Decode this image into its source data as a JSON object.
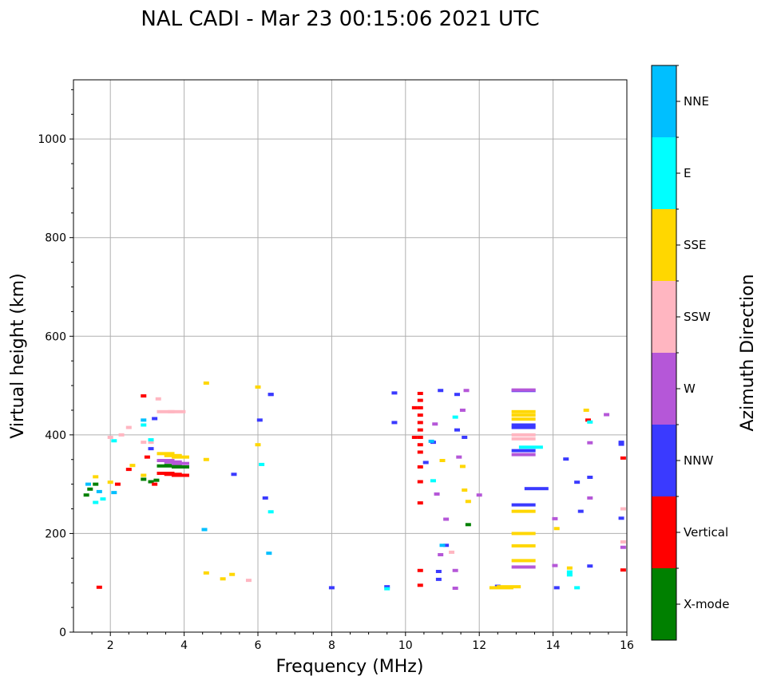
{
  "title": "NAL CADI - Mar 23 00:15:06 2021 UTC",
  "chart_data": {
    "type": "scatter",
    "xlabel": "Frequency (MHz)",
    "ylabel": "Virtual height (km)",
    "xlim": [
      1,
      16
    ],
    "ylim": [
      0,
      1120
    ],
    "xticks": [
      2,
      4,
      6,
      8,
      10,
      12,
      14,
      16
    ],
    "yticks": [
      0,
      200,
      400,
      600,
      800,
      1000
    ],
    "grid": true,
    "colorbar": {
      "label": "Azimuth Direction",
      "categories": [
        {
          "name": "X-mode",
          "color": "#008000"
        },
        {
          "name": "Vertical",
          "color": "#ff0000"
        },
        {
          "name": "NNW",
          "color": "#3a3aff"
        },
        {
          "name": "W",
          "color": "#b557d8"
        },
        {
          "name": "SSW",
          "color": "#ffb6c1"
        },
        {
          "name": "SSE",
          "color": "#ffd700"
        },
        {
          "name": "E",
          "color": "#00ffff"
        },
        {
          "name": "NNE",
          "color": "#00bfff"
        }
      ]
    },
    "series": [
      {
        "name": "X-mode",
        "points": [
          [
            1.35,
            278
          ],
          [
            1.45,
            290
          ],
          [
            1.6,
            300
          ],
          [
            2.9,
            310
          ],
          [
            3.1,
            305
          ],
          [
            3.25,
            308
          ],
          [
            3.5,
            337
          ],
          [
            3.7,
            338
          ],
          [
            3.9,
            335
          ],
          [
            11.7,
            218
          ]
        ]
      },
      {
        "name": "Vertical",
        "points": [
          [
            1.7,
            91
          ],
          [
            2.2,
            300
          ],
          [
            2.5,
            330
          ],
          [
            2.9,
            479
          ],
          [
            3.0,
            355
          ],
          [
            3.2,
            300
          ],
          [
            3.5,
            322
          ],
          [
            3.7,
            320
          ],
          [
            3.9,
            318
          ],
          [
            10.4,
            484
          ],
          [
            10.4,
            470
          ],
          [
            10.4,
            455
          ],
          [
            10.4,
            440
          ],
          [
            10.4,
            425
          ],
          [
            10.4,
            410
          ],
          [
            10.4,
            395
          ],
          [
            10.4,
            380
          ],
          [
            10.4,
            365
          ],
          [
            10.4,
            335
          ],
          [
            10.4,
            305
          ],
          [
            10.4,
            262
          ],
          [
            10.4,
            125
          ],
          [
            10.4,
            95
          ],
          [
            10.25,
            455
          ],
          [
            10.25,
            395
          ],
          [
            14.95,
            430
          ],
          [
            15.9,
            353
          ],
          [
            15.9,
            126
          ]
        ]
      },
      {
        "name": "NNW",
        "points": [
          [
            3.2,
            433
          ],
          [
            3.1,
            372
          ],
          [
            6.35,
            482
          ],
          [
            6.35,
            482
          ],
          [
            10.95,
            490
          ],
          [
            6.05,
            430
          ],
          [
            6.2,
            272
          ],
          [
            5.35,
            320
          ],
          [
            8.0,
            90
          ],
          [
            9.5,
            92
          ],
          [
            9.7,
            485
          ],
          [
            9.7,
            425
          ],
          [
            10.55,
            344
          ],
          [
            10.75,
            385
          ],
          [
            10.9,
            123
          ],
          [
            10.9,
            107
          ],
          [
            11.1,
            176
          ],
          [
            11.4,
            482
          ],
          [
            11.4,
            410
          ],
          [
            11.6,
            395
          ],
          [
            12.5,
            93
          ],
          [
            13.2,
            490
          ],
          [
            13.2,
            420
          ],
          [
            13.2,
            415
          ],
          [
            13.2,
            368
          ],
          [
            13.2,
            258
          ],
          [
            13.55,
            291
          ],
          [
            14.1,
            90
          ],
          [
            14.35,
            351
          ],
          [
            14.65,
            304
          ],
          [
            14.75,
            245
          ],
          [
            15.0,
            314
          ],
          [
            15.0,
            134
          ],
          [
            15.85,
            385
          ],
          [
            15.85,
            381
          ],
          [
            15.85,
            231
          ]
        ]
      },
      {
        "name": "W",
        "points": [
          [
            3.5,
            348
          ],
          [
            3.7,
            345
          ],
          [
            3.9,
            342
          ],
          [
            10.8,
            422
          ],
          [
            10.85,
            280
          ],
          [
            10.95,
            157
          ],
          [
            11.1,
            229
          ],
          [
            11.35,
            125
          ],
          [
            11.35,
            89
          ],
          [
            11.45,
            355
          ],
          [
            11.55,
            450
          ],
          [
            11.65,
            490
          ],
          [
            12.0,
            278
          ],
          [
            13.2,
            360
          ],
          [
            13.2,
            132
          ],
          [
            13.2,
            491
          ],
          [
            14.05,
            230
          ],
          [
            14.05,
            135
          ],
          [
            15.0,
            384
          ],
          [
            15.0,
            272
          ],
          [
            15.45,
            441
          ],
          [
            15.9,
            172
          ]
        ]
      },
      {
        "name": "SSW",
        "points": [
          [
            2.0,
            395
          ],
          [
            2.3,
            400
          ],
          [
            2.5,
            415
          ],
          [
            2.9,
            385
          ],
          [
            3.1,
            385
          ],
          [
            3.3,
            473
          ],
          [
            3.5,
            447
          ],
          [
            3.8,
            447
          ],
          [
            5.75,
            105
          ],
          [
            11.25,
            162
          ],
          [
            13.2,
            400
          ],
          [
            13.2,
            392
          ],
          [
            15.9,
            250
          ],
          [
            15.9,
            183
          ]
        ]
      },
      {
        "name": "SSE",
        "points": [
          [
            1.6,
            315
          ],
          [
            2.0,
            304
          ],
          [
            2.6,
            338
          ],
          [
            2.9,
            318
          ],
          [
            3.5,
            362
          ],
          [
            3.7,
            358
          ],
          [
            3.9,
            355
          ],
          [
            4.6,
            505
          ],
          [
            4.6,
            350
          ],
          [
            4.6,
            120
          ],
          [
            5.05,
            108
          ],
          [
            5.3,
            117
          ],
          [
            6.0,
            497
          ],
          [
            6.0,
            380
          ],
          [
            11.0,
            348
          ],
          [
            11.55,
            336
          ],
          [
            11.6,
            288
          ],
          [
            11.7,
            265
          ],
          [
            12.6,
            90
          ],
          [
            12.8,
            92
          ],
          [
            13.2,
            447
          ],
          [
            13.2,
            440
          ],
          [
            13.2,
            432
          ],
          [
            13.2,
            245
          ],
          [
            13.2,
            200
          ],
          [
            13.2,
            175
          ],
          [
            13.2,
            145
          ],
          [
            14.1,
            210
          ],
          [
            14.45,
            130
          ],
          [
            14.9,
            450
          ]
        ]
      },
      {
        "name": "E",
        "points": [
          [
            1.6,
            263
          ],
          [
            1.8,
            270
          ],
          [
            2.1,
            388
          ],
          [
            2.9,
            420
          ],
          [
            3.1,
            390
          ],
          [
            6.1,
            340
          ],
          [
            6.35,
            244
          ],
          [
            10.75,
            307
          ],
          [
            11.35,
            436
          ],
          [
            13.4,
            375
          ],
          [
            14.45,
            122
          ],
          [
            14.45,
            116
          ],
          [
            14.65,
            90
          ],
          [
            15.0,
            426
          ],
          [
            9.5,
            88
          ]
        ]
      },
      {
        "name": "NNE",
        "points": [
          [
            1.4,
            300
          ],
          [
            1.7,
            285
          ],
          [
            2.1,
            283
          ],
          [
            2.9,
            430
          ],
          [
            4.55,
            208
          ],
          [
            6.3,
            160
          ],
          [
            10.7,
            387
          ],
          [
            11.0,
            176
          ]
        ]
      }
    ]
  }
}
